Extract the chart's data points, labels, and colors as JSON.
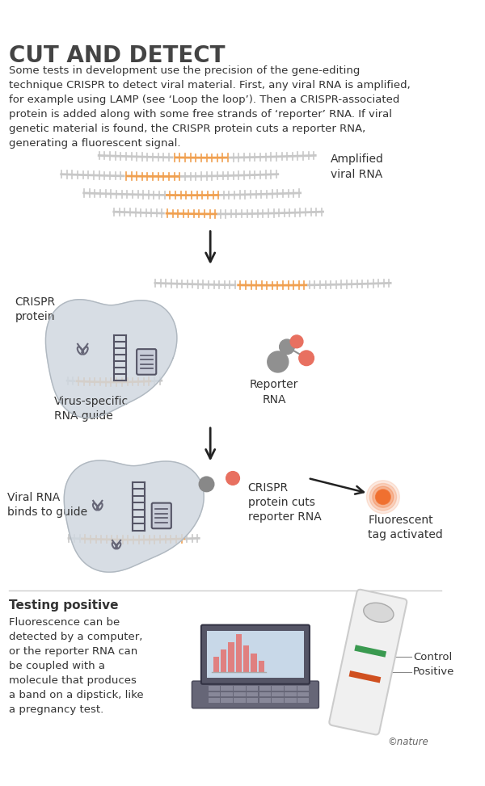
{
  "title": "CUT AND DETECT",
  "title_color": "#444444",
  "background_color": "#ffffff",
  "body_text": "Some tests in development use the precision of the gene-editing\ntechnique CRISPR to detect viral material. First, any viral RNA is amplified,\nfor example using LAMP (see ‘Loop the loop’). Then a CRISPR-associated\nprotein is added along with some free strands of ‘reporter’ RNA. If viral\ngenetic material is found, the CRISPR protein cuts a reporter RNA,\ngenerating a fluorescent signal.",
  "rna_gray": "#c8c8c8",
  "rna_orange": "#f0a050",
  "rna_dark": "#999999",
  "protein_fill": "#d0d8e0",
  "protein_stroke": "#b0b8c0",
  "arrow_color": "#222222",
  "reporter_gray": "#909090",
  "reporter_orange": "#e87060",
  "fluor_orange": "#f07030",
  "text_color": "#333333",
  "section2_title": "Testing positive",
  "section2_text": "Fluorescence can be\ndetected by a computer,\nor the reporter RNA can\nbe coupled with a\nmolecule that produces\na band on a dipstick, like\na pregnancy test.",
  "control_color": "#3a9a50",
  "positive_color": "#d05020",
  "laptop_dark": "#555566",
  "laptop_screen": "#c8d8e8",
  "bar_color": "#e08080",
  "copyright": "©nature"
}
